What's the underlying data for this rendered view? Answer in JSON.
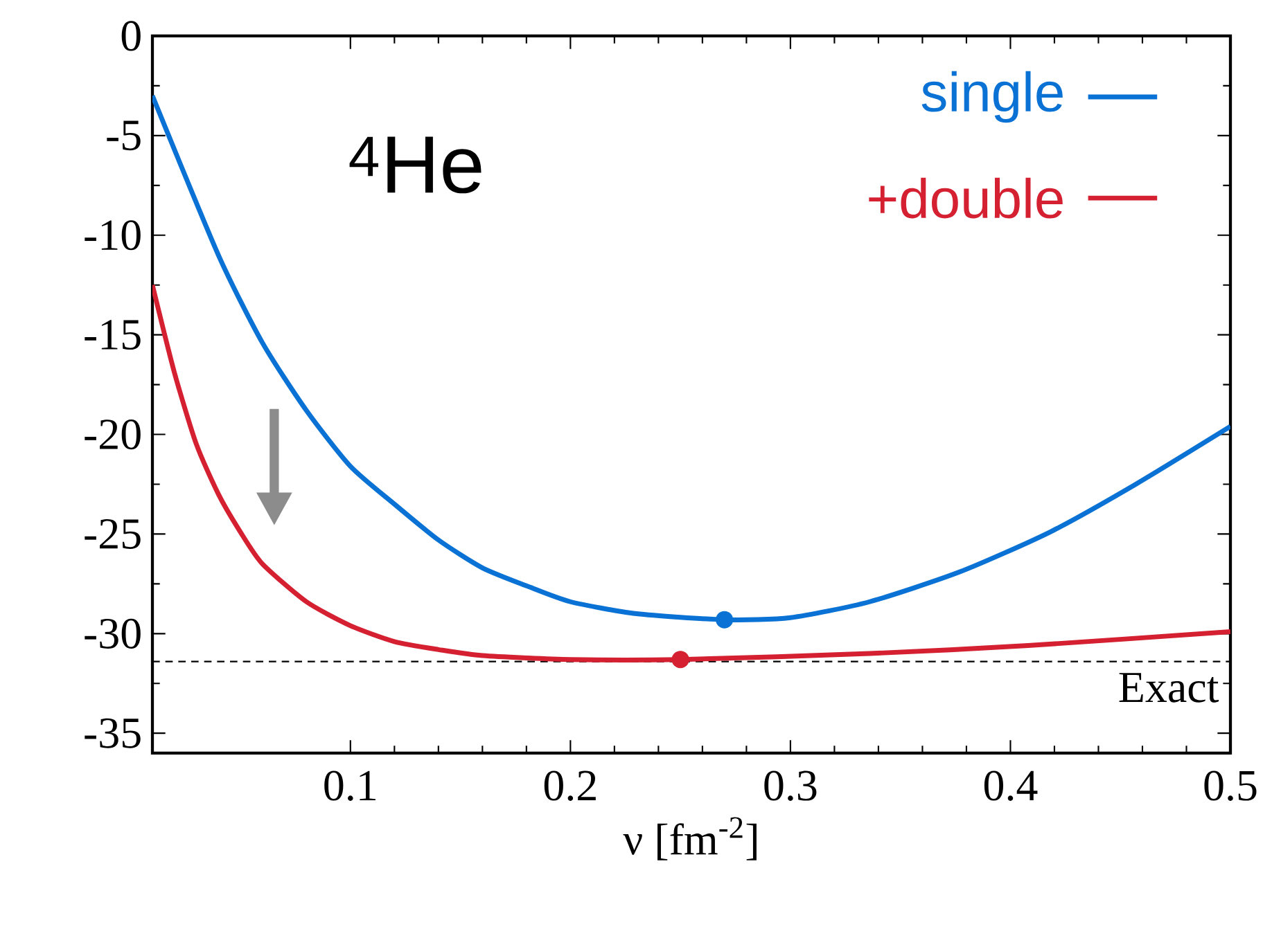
{
  "chart_data": {
    "type": "line",
    "title": "$^{4}$He",
    "xlabel": "ν [fm$^{-2}$]",
    "xlim": [
      0.01,
      0.5
    ],
    "ylim": [
      -36,
      0
    ],
    "xticks": [
      0.1,
      0.2,
      0.3,
      0.4,
      0.5
    ],
    "yticks": [
      0,
      -5,
      -10,
      -15,
      -20,
      -25,
      -30,
      -35
    ],
    "legend": "top right",
    "series": [
      {
        "name": "single",
        "color": "#0a72d4",
        "x": [
          0.01,
          0.04,
          0.06,
          0.08,
          0.1,
          0.12,
          0.14,
          0.16,
          0.18,
          0.2,
          0.23,
          0.27,
          0.3,
          0.336,
          0.377,
          0.418,
          0.457,
          0.5
        ],
        "values": [
          -3.0,
          -11.0,
          -15.4,
          -18.8,
          -21.6,
          -23.5,
          -25.3,
          -26.7,
          -27.6,
          -28.4,
          -29.0,
          -29.3,
          -29.2,
          -28.4,
          -26.9,
          -24.9,
          -22.5,
          -19.6
        ]
      },
      {
        "name": "+double",
        "color": "#d42030",
        "x": [
          0.01,
          0.02,
          0.03,
          0.04,
          0.05,
          0.06,
          0.08,
          0.1,
          0.12,
          0.14,
          0.16,
          0.2,
          0.25,
          0.336,
          0.408,
          0.5
        ],
        "values": [
          -12.5,
          -16.9,
          -20.5,
          -23.0,
          -24.9,
          -26.5,
          -28.4,
          -29.6,
          -30.4,
          -30.8,
          -31.1,
          -31.3,
          -31.3,
          -31.0,
          -30.6,
          -29.9
        ]
      },
      {
        "type": "scatter",
        "color": "#0a72d4",
        "marker": "circle",
        "x": [
          0.27
        ],
        "values": [
          -29.3
        ]
      },
      {
        "type": "scatter",
        "color": "#d42030",
        "marker": "circle",
        "x": [
          0.25
        ],
        "values": [
          -31.3
        ]
      }
    ],
    "ref_lines": [
      {
        "axis": "y",
        "value": -31.4,
        "label": "Exact",
        "color": "#000000",
        "line_style": "dashed"
      }
    ]
  }
}
